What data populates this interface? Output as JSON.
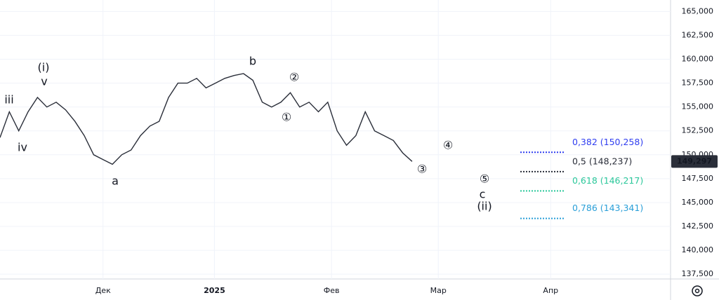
{
  "chart_data": {
    "type": "line",
    "categories": [
      null,
      null,
      null,
      null,
      null,
      null,
      null,
      null,
      null,
      null,
      null,
      null,
      null,
      null,
      null,
      null,
      null,
      null,
      null,
      null,
      null,
      null,
      null,
      null,
      null,
      null,
      null,
      null,
      null,
      null,
      null,
      null,
      null,
      null,
      null,
      null,
      null,
      null,
      null,
      null,
      null,
      null,
      null,
      null,
      null
    ],
    "series": [
      {
        "color": "#2a2e39",
        "values": [
          151800,
          154500,
          152500,
          154500,
          156000,
          155000,
          155500,
          154700,
          153500,
          152000,
          150000,
          149500,
          149000,
          150000,
          150500,
          152000,
          153000,
          153500,
          156000,
          157500,
          157500,
          158000,
          157000,
          157500,
          158000,
          158300,
          158500,
          157800,
          155500,
          155000,
          155500,
          156500,
          155000,
          155500,
          154500,
          155500,
          152500,
          151000,
          152000,
          154500,
          152500,
          152000,
          151500,
          150200,
          149300
        ]
      }
    ],
    "xlim": [
      0,
      71.6
    ],
    "xticks": [
      {
        "value": 11,
        "label": "Дек"
      },
      {
        "value": 22.9,
        "label": "2025"
      },
      {
        "value": 35.4,
        "label": "Фев"
      },
      {
        "value": 46.8,
        "label": "Мар"
      },
      {
        "value": 58.8,
        "label": "Апр"
      }
    ],
    "ylim": [
      137000,
      166200
    ],
    "yticks": [
      {
        "value": 137500,
        "label": "137,500"
      },
      {
        "value": 140000,
        "label": "140,000"
      },
      {
        "value": 142500,
        "label": "142,500"
      },
      {
        "value": 145000,
        "label": "145,000"
      },
      {
        "value": 147500,
        "label": "147,500"
      },
      {
        "value": 150000,
        "label": "150,000"
      },
      {
        "value": 152500,
        "label": "152,500"
      },
      {
        "value": 155000,
        "label": "155,000"
      },
      {
        "value": 157500,
        "label": "157,500"
      },
      {
        "value": 160000,
        "label": "160,000"
      },
      {
        "value": 162500,
        "label": "162,500"
      },
      {
        "value": 165000,
        "label": "165,000"
      }
    ],
    "grid": true,
    "last_price": {
      "value": 149297,
      "label": "149,297",
      "color": "#2a2e39"
    },
    "fib_levels": [
      {
        "value": 150258,
        "label": "0,382 (150,258)",
        "color": "#2f3df0"
      },
      {
        "value": 148237,
        "label": "0,5 (148,237)",
        "color": "#2a2e39"
      },
      {
        "value": 146217,
        "label": "0,618 (146,217)",
        "color": "#2bc89a"
      },
      {
        "value": 143341,
        "label": "0,786 (143,341)",
        "color": "#2a9fd8"
      }
    ],
    "annotations": [
      "(i)",
      "v",
      "iii",
      "iv",
      "a",
      "b",
      "②",
      "①",
      "③",
      "④",
      "⑤",
      "c",
      "(ii)"
    ]
  }
}
